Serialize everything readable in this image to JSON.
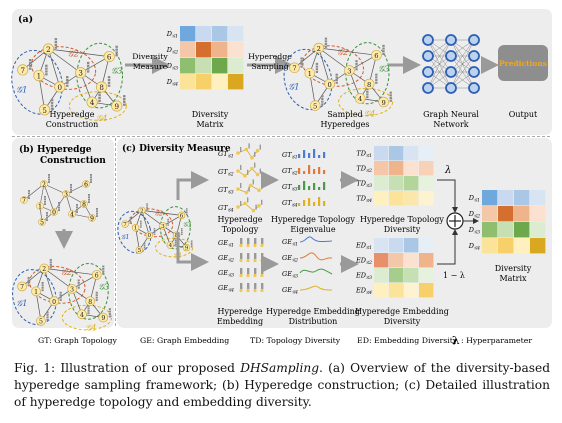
{
  "panel_a": {
    "label": "(a)",
    "steps": [
      {
        "name": "Hyperedge\nConstruction"
      },
      {
        "name": "Diversity\nMatrix"
      },
      {
        "name": "Sampled\nHyperedges"
      },
      {
        "name": "Graph Neural\nNetwork"
      },
      {
        "name": "Output"
      }
    ],
    "arrow1": "Diversity\nMeasure",
    "arrow2": "Hyperedge\nSampling",
    "predictions": "Predictions",
    "matrix_rows": [
      "D_{G1}",
      "D_{G2}",
      "D_{G3}",
      "D_{G4}"
    ],
    "edge_labels": [
      "G1",
      "G2",
      "G3",
      "G4"
    ]
  },
  "panel_b": {
    "label": "(b) Hyperedge\nConstruction"
  },
  "panel_c": {
    "label": "(c) Diversity Measure",
    "topology": "Hyperedge\nTopology",
    "embedding": "Hyperedge\nEmbedding",
    "topo_eig": "Hyperedge Topology\nEigenvalue",
    "emb_dist": "Hyperedge Embedding\nDistribution",
    "topo_div": "Hyperedge Topology\nDiversity",
    "emb_div": "Hyperedge Embedding\nDiversity",
    "div_matrix": "Diversity\nMatrix",
    "lambda": "λ",
    "one_minus_lambda": "1 − λ",
    "gt_labels": [
      "GT_{G1}",
      "GT_{G2}",
      "GT_{G3}",
      "GT_{G4}"
    ],
    "ge_labels": [
      "GE_{G1}",
      "GE_{G2}",
      "GE_{G3}",
      "GE_{G4}"
    ],
    "td_labels": [
      "TD_{G1}",
      "TD_{G2}",
      "TD_{G3}",
      "TD_{G4}"
    ],
    "ed_labels": [
      "ED_{G1}",
      "ED_{G2}",
      "ED_{G3}",
      "ED_{G4}"
    ]
  },
  "legend": {
    "gt": "GT: Graph Topology",
    "ge": "GE: Graph Embedding",
    "td": "TD: Topology Diversity",
    "ed": "ED: Embedding Diversity",
    "lambda_sym": "λ",
    "lambda": ": Hyperparameter"
  },
  "caption": {
    "prefix": "Fig. 1: Illustration of our proposed ",
    "name": "DHSampling",
    "rest": ". (a) Overview of the diversity-based hyperedge sampling framework; (b) Hyperedge construction; (c) Detailed illustration of hyperedge topology and embedding diversity."
  }
}
